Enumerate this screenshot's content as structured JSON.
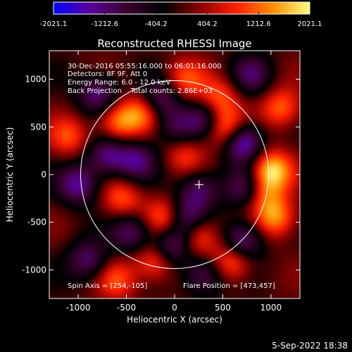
{
  "chart_data": {
    "type": "heatmap",
    "title": "Reconstructed RHESSI Image",
    "xlabel": "Heliocentric X (arcsec)",
    "ylabel": "Heliocentric Y (arcsec)",
    "xlim": [
      -1300,
      1300
    ],
    "ylim": [
      -1300,
      1300
    ],
    "xticks": [
      -1000,
      -500,
      0,
      500,
      1000
    ],
    "yticks": [
      -1000,
      -500,
      0,
      500,
      1000
    ],
    "colorbar": {
      "min": -2021.1,
      "max": 2021.1,
      "tick_labels": [
        "-2021.1",
        "-1212.6",
        "-404.2",
        "404.2",
        "1212.6",
        "2021.1"
      ],
      "colors": [
        "#0000ff",
        "#5a009a",
        "#3a0030",
        "#000000",
        "#8a0000",
        "#ff2000",
        "#ff9000",
        "#ffff80"
      ]
    },
    "annotations": [
      "30-Dec-2016 05:55:16.000 to 06:01:16.000",
      "Detectors: 8F 9F, Att 0",
      "Energy Range: 6.0 - 12.0 keV",
      "Back Projection    Total counts: 2.86E+03",
      "Spin Axis = [254,-105]",
      "Flare Position = [473,457]"
    ],
    "solar_limb_radius_arcsec": 975,
    "spin_axis": [
      254,
      -105
    ],
    "flare_position": [
      473,
      457
    ],
    "peaks": [
      {
        "x": 500,
        "y": 500,
        "v": 1900
      },
      {
        "x": 700,
        "y": 350,
        "v": -1900
      },
      {
        "x": 350,
        "y": 580,
        "v": -1500
      },
      {
        "x": 450,
        "y": 800,
        "v": 1200
      },
      {
        "x": 1000,
        "y": 50,
        "v": 1800
      },
      {
        "x": 750,
        "y": -150,
        "v": -1400
      },
      {
        "x": 700,
        "y": -700,
        "v": -1600
      },
      {
        "x": 600,
        "y": -900,
        "v": 1400
      },
      {
        "x": 1050,
        "y": -450,
        "v": 1400
      },
      {
        "x": 900,
        "y": -200,
        "v": 1300
      },
      {
        "x": 1100,
        "y": 700,
        "v": 1200
      },
      {
        "x": 250,
        "y": -150,
        "v": -1200
      },
      {
        "x": 100,
        "y": -450,
        "v": -1300
      },
      {
        "x": -50,
        "y": -750,
        "v": -1500
      },
      {
        "x": -100,
        "y": -450,
        "v": 1300
      },
      {
        "x": -200,
        "y": -900,
        "v": 1300
      },
      {
        "x": 250,
        "y": -650,
        "v": 1200
      },
      {
        "x": -450,
        "y": -600,
        "v": -1200
      },
      {
        "x": -550,
        "y": -250,
        "v": 1100
      },
      {
        "x": -400,
        "y": 150,
        "v": -1200
      },
      {
        "x": -700,
        "y": 200,
        "v": -1300
      },
      {
        "x": -600,
        "y": 550,
        "v": 1300
      },
      {
        "x": -350,
        "y": 650,
        "v": 1200
      },
      {
        "x": -150,
        "y": 800,
        "v": -1200
      },
      {
        "x": -800,
        "y": 850,
        "v": -1300
      },
      {
        "x": -1000,
        "y": -100,
        "v": -1400
      },
      {
        "x": -900,
        "y": -900,
        "v": -1200
      },
      {
        "x": -1100,
        "y": 400,
        "v": 1000
      },
      {
        "x": 100,
        "y": 200,
        "v": 900
      },
      {
        "x": 0,
        "y": 500,
        "v": -900
      },
      {
        "x": 100,
        "y": 1000,
        "v": 1000
      },
      {
        "x": 800,
        "y": 1050,
        "v": -1000
      },
      {
        "x": 300,
        "y": -1050,
        "v": -1200
      },
      {
        "x": -600,
        "y": -1100,
        "v": 1000
      }
    ]
  },
  "footer": {
    "date": "5-Sep-2022 18:38"
  }
}
